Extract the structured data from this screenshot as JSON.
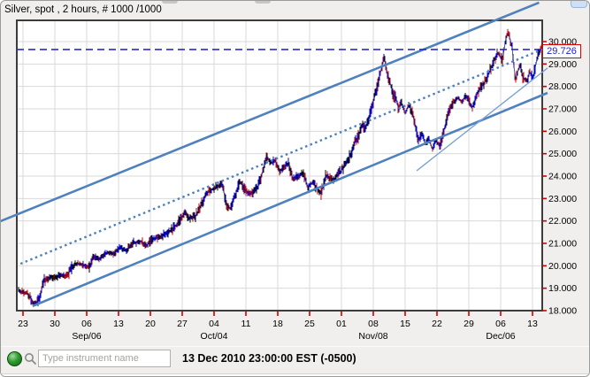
{
  "chart": {
    "title": "Silver, spot , 2 hours, # 1000 /1000",
    "current_price_label": "29.726"
  },
  "chart_data": {
    "type": "line",
    "instrument": "Silver, spot",
    "interval": "2 hours",
    "bars_shown": "# 1000 /1000",
    "current_price": 29.726,
    "ylim": [
      18.0,
      30.95
    ],
    "grid": true,
    "y_tick_labels": [
      "30.000",
      "29.000",
      "28.000",
      "27.000",
      "26.000",
      "25.000",
      "24.000",
      "23.000",
      "22.000",
      "21.000",
      "20.000",
      "19.000",
      "18.000"
    ],
    "x_tick_labels": [
      "23",
      "30",
      "06",
      "13",
      "20",
      "27",
      "04",
      "11",
      "18",
      "25",
      "01",
      "08",
      "15",
      "22",
      "29",
      "06",
      "13"
    ],
    "x_month_labels": [
      {
        "tick_index": 2,
        "label": "Sep/06"
      },
      {
        "tick_index": 6,
        "label": "Oct/04"
      },
      {
        "tick_index": 11,
        "label": "Nov/08"
      },
      {
        "tick_index": 15,
        "label": "Dec/06"
      }
    ],
    "series": [
      {
        "name": "Silver spot price",
        "points": [
          [
            0.003,
            18.9
          ],
          [
            0.02,
            18.75
          ],
          [
            0.034,
            18.3
          ],
          [
            0.044,
            18.55
          ],
          [
            0.051,
            19.35
          ],
          [
            0.064,
            19.5
          ],
          [
            0.074,
            19.45
          ],
          [
            0.084,
            19.6
          ],
          [
            0.096,
            19.55
          ],
          [
            0.104,
            19.9
          ],
          [
            0.113,
            20.1
          ],
          [
            0.125,
            20.05
          ],
          [
            0.138,
            19.95
          ],
          [
            0.146,
            20.4
          ],
          [
            0.158,
            20.3
          ],
          [
            0.172,
            20.6
          ],
          [
            0.185,
            20.55
          ],
          [
            0.197,
            20.8
          ],
          [
            0.209,
            20.7
          ],
          [
            0.222,
            21.0
          ],
          [
            0.236,
            21.1
          ],
          [
            0.247,
            20.9
          ],
          [
            0.259,
            21.2
          ],
          [
            0.273,
            21.3
          ],
          [
            0.29,
            21.5
          ],
          [
            0.303,
            21.8
          ],
          [
            0.315,
            22.2
          ],
          [
            0.32,
            22.4
          ],
          [
            0.328,
            22.1
          ],
          [
            0.34,
            22.2
          ],
          [
            0.354,
            22.9
          ],
          [
            0.365,
            23.3
          ],
          [
            0.377,
            23.5
          ],
          [
            0.391,
            23.65
          ],
          [
            0.399,
            22.7
          ],
          [
            0.407,
            22.55
          ],
          [
            0.418,
            23.3
          ],
          [
            0.424,
            23.8
          ],
          [
            0.434,
            23.4
          ],
          [
            0.444,
            23.2
          ],
          [
            0.458,
            23.45
          ],
          [
            0.468,
            24.2
          ],
          [
            0.475,
            24.9
          ],
          [
            0.483,
            24.6
          ],
          [
            0.492,
            24.7
          ],
          [
            0.5,
            24.2
          ],
          [
            0.508,
            24.4
          ],
          [
            0.517,
            24.55
          ],
          [
            0.525,
            23.9
          ],
          [
            0.535,
            24.0
          ],
          [
            0.545,
            24.1
          ],
          [
            0.554,
            23.5
          ],
          [
            0.564,
            23.75
          ],
          [
            0.572,
            23.4
          ],
          [
            0.579,
            23.2
          ],
          [
            0.588,
            24.05
          ],
          [
            0.596,
            23.9
          ],
          [
            0.604,
            23.85
          ],
          [
            0.618,
            24.26
          ],
          [
            0.626,
            24.6
          ],
          [
            0.635,
            24.93
          ],
          [
            0.643,
            25.5
          ],
          [
            0.651,
            25.8
          ],
          [
            0.657,
            26.3
          ],
          [
            0.663,
            26.1
          ],
          [
            0.67,
            26.6
          ],
          [
            0.677,
            27.2
          ],
          [
            0.683,
            27.7
          ],
          [
            0.69,
            28.4
          ],
          [
            0.699,
            29.3
          ],
          [
            0.705,
            28.6
          ],
          [
            0.71,
            28.2
          ],
          [
            0.717,
            27.6
          ],
          [
            0.722,
            27.5
          ],
          [
            0.727,
            26.9
          ],
          [
            0.732,
            27.3
          ],
          [
            0.739,
            26.8
          ],
          [
            0.746,
            27.2
          ],
          [
            0.752,
            26.9
          ],
          [
            0.758,
            26.3
          ],
          [
            0.764,
            25.6
          ],
          [
            0.771,
            25.9
          ],
          [
            0.778,
            25.4
          ],
          [
            0.784,
            25.7
          ],
          [
            0.791,
            25.2
          ],
          [
            0.798,
            25.6
          ],
          [
            0.805,
            25.3
          ],
          [
            0.811,
            25.9
          ],
          [
            0.818,
            26.5
          ],
          [
            0.825,
            27.0
          ],
          [
            0.832,
            27.3
          ],
          [
            0.84,
            27.5
          ],
          [
            0.847,
            27.3
          ],
          [
            0.854,
            27.6
          ],
          [
            0.86,
            27.4
          ],
          [
            0.867,
            27.0
          ],
          [
            0.874,
            27.5
          ],
          [
            0.88,
            27.9
          ],
          [
            0.887,
            28.1
          ],
          [
            0.894,
            28.3
          ],
          [
            0.899,
            28.6
          ],
          [
            0.904,
            28.9
          ],
          [
            0.909,
            29.2
          ],
          [
            0.914,
            29.5
          ],
          [
            0.919,
            29.4
          ],
          [
            0.924,
            29.1
          ],
          [
            0.929,
            29.9
          ],
          [
            0.934,
            30.45
          ],
          [
            0.939,
            30.1
          ],
          [
            0.943,
            29.7
          ],
          [
            0.946,
            28.9
          ],
          [
            0.949,
            28.3
          ],
          [
            0.954,
            28.7
          ],
          [
            0.958,
            29.0
          ],
          [
            0.963,
            28.4
          ],
          [
            0.968,
            28.3
          ],
          [
            0.971,
            28.2
          ],
          [
            0.976,
            28.65
          ],
          [
            0.98,
            28.5
          ],
          [
            0.983,
            28.45
          ],
          [
            0.988,
            29.0
          ],
          [
            0.992,
            29.45
          ],
          [
            0.997,
            29.6
          ],
          [
            1.0,
            29.726
          ]
        ]
      }
    ],
    "overlays": {
      "current_price_dashed_line": {
        "price": 29.726,
        "style": "dashed",
        "color": "#2a2ad6"
      },
      "channel_upper": {
        "x1_frac": -0.031,
        "price1": 21.99,
        "x2_frac": 0.994,
        "price2": 31.74,
        "style": "solid",
        "color": "#4f81bd"
      },
      "channel_lower": {
        "x1_frac": 0.03,
        "price1": 18.2,
        "x2_frac": 1.01,
        "price2": 27.71,
        "style": "solid",
        "color": "#4f81bd"
      },
      "channel_mid": {
        "x1_frac": 0.007,
        "price1": 20.09,
        "x2_frac": 1.003,
        "price2": 29.68,
        "style": "dotted",
        "color": "#4f81bd"
      },
      "minor_trendline": {
        "x1_frac": 0.761,
        "price1": 24.24,
        "x2_frac": 1.01,
        "price2": 28.82,
        "style": "solid-thin",
        "color": "#7aa3d4"
      }
    },
    "colors": {
      "up_candle": "#0000c6",
      "down_candle": "#b50d0d",
      "wick": "#000000",
      "grid": "#d9d9d9",
      "axis_tick": "#cc0000",
      "plot_border": "#3c3c3c"
    }
  },
  "bottom_bar": {
    "status_led": "green",
    "search_icon": "magnifier",
    "search_placeholder": "Type instrument name",
    "timestamp": "13 Dec 2010 23:00:00  EST (-0500)"
  }
}
